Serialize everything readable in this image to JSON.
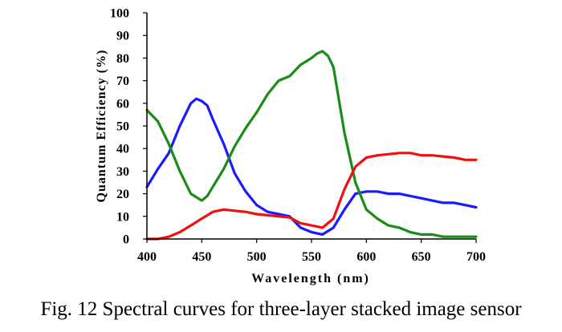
{
  "caption": "Fig. 12 Spectral curves for three-layer stacked image sensor",
  "chart_data": {
    "type": "line",
    "title": "",
    "xlabel": "Wavelength (nm)",
    "ylabel": "Quantum Efficiency (%)",
    "xlim": [
      400,
      700
    ],
    "ylim": [
      0,
      100
    ],
    "xticks": [
      400,
      450,
      500,
      550,
      600,
      650,
      700
    ],
    "yticks": [
      0,
      10,
      20,
      30,
      40,
      50,
      60,
      70,
      80,
      90,
      100
    ],
    "grid": false,
    "legend": "none",
    "series": [
      {
        "color": "#1a1aff",
        "x": [
          400,
          410,
          420,
          430,
          440,
          445,
          450,
          455,
          460,
          470,
          480,
          490,
          500,
          510,
          520,
          530,
          540,
          550,
          560,
          570,
          580,
          590,
          600,
          610,
          620,
          630,
          640,
          650,
          660,
          670,
          680,
          690,
          700
        ],
        "y": [
          23,
          31,
          38,
          50,
          60,
          62,
          61,
          59,
          53,
          42,
          29,
          21,
          15,
          12,
          11,
          10,
          5,
          3,
          2,
          5,
          13,
          20,
          21,
          21,
          20,
          20,
          19,
          18,
          17,
          16,
          16,
          15,
          14
        ]
      },
      {
        "color": "#1a8c1a",
        "x": [
          400,
          410,
          420,
          430,
          440,
          450,
          455,
          460,
          470,
          480,
          490,
          500,
          510,
          520,
          530,
          540,
          550,
          555,
          560,
          565,
          570,
          580,
          590,
          600,
          610,
          620,
          630,
          640,
          650,
          660,
          670,
          680,
          690,
          700
        ],
        "y": [
          57,
          52,
          42,
          30,
          20,
          17,
          19,
          23,
          31,
          41,
          49,
          56,
          64,
          70,
          72,
          77,
          80,
          82,
          83,
          81,
          76,
          47,
          25,
          13,
          9,
          6,
          5,
          3,
          2,
          2,
          1,
          1,
          1,
          1
        ]
      },
      {
        "color": "#ee1111",
        "x": [
          400,
          410,
          420,
          430,
          440,
          450,
          460,
          470,
          480,
          490,
          500,
          510,
          520,
          530,
          540,
          550,
          560,
          570,
          580,
          590,
          600,
          610,
          620,
          630,
          640,
          650,
          660,
          670,
          680,
          690,
          700
        ],
        "y": [
          0,
          0,
          1,
          3,
          6,
          9,
          12,
          13,
          12.5,
          12,
          11,
          10.5,
          10,
          9.5,
          7,
          6,
          5,
          9,
          22,
          32,
          36,
          37,
          37.5,
          38,
          38,
          37,
          37,
          36.5,
          36,
          35,
          35
        ]
      }
    ]
  }
}
